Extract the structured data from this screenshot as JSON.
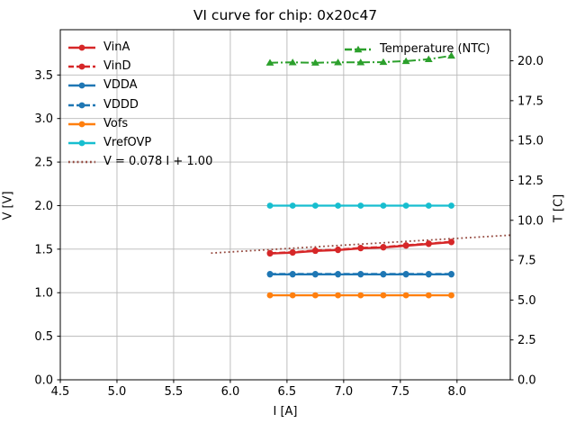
{
  "title": "VI curve for chip: 0x20c47",
  "chart_data": {
    "type": "line",
    "title": "VI curve for chip: 0x20c47",
    "xlabel": "I [A]",
    "ylabel_left": "V [V]",
    "ylabel_right": "T [C]",
    "xlim": [
      4.5,
      8.47
    ],
    "ylim_left": [
      0.0,
      4.02
    ],
    "ylim_right": [
      0.0,
      21.95
    ],
    "grid": true,
    "x_tick_labels": [
      "4.5",
      "5.0",
      "5.5",
      "6.0",
      "6.5",
      "7.0",
      "7.5",
      "8.0"
    ],
    "y_tick_labels_left": [
      "0.0",
      "0.5",
      "1.0",
      "1.5",
      "2.0",
      "2.5",
      "3.0",
      "3.5"
    ],
    "y_tick_labels_right": [
      "0.0",
      "2.5",
      "5.0",
      "7.5",
      "10.0",
      "12.5",
      "15.0",
      "17.5",
      "20.0"
    ],
    "x": [
      6.35,
      6.55,
      6.75,
      6.95,
      7.15,
      7.35,
      7.55,
      7.75,
      7.95
    ],
    "series": [
      {
        "name": "VinA",
        "axis": "left",
        "color": "#d62728",
        "linestyle": "solid",
        "marker": "circle",
        "linewidth": 2.4,
        "values": [
          1.45,
          1.46,
          1.48,
          1.49,
          1.51,
          1.52,
          1.54,
          1.56,
          1.58
        ]
      },
      {
        "name": "VinD",
        "axis": "left",
        "color": "#d62728",
        "linestyle": "dashed",
        "marker": "circle",
        "linewidth": 2.2,
        "values": [
          1.455,
          1.465,
          1.485,
          1.495,
          1.515,
          1.525,
          1.545,
          1.565,
          1.585
        ]
      },
      {
        "name": "VDDA",
        "axis": "left",
        "color": "#1f77b4",
        "linestyle": "solid",
        "marker": "circle",
        "linewidth": 2.2,
        "values": [
          1.21,
          1.21,
          1.21,
          1.21,
          1.21,
          1.21,
          1.21,
          1.21,
          1.21
        ]
      },
      {
        "name": "VDDD",
        "axis": "left",
        "color": "#1f77b4",
        "linestyle": "dashed",
        "marker": "circle",
        "linewidth": 2.2,
        "values": [
          1.215,
          1.215,
          1.215,
          1.215,
          1.215,
          1.215,
          1.215,
          1.215,
          1.215
        ]
      },
      {
        "name": "Vofs",
        "axis": "left",
        "color": "#ff7f0e",
        "linestyle": "solid",
        "marker": "circle",
        "linewidth": 2.2,
        "values": [
          0.97,
          0.97,
          0.97,
          0.97,
          0.97,
          0.97,
          0.97,
          0.97,
          0.97
        ]
      },
      {
        "name": "VrefOVP",
        "axis": "left",
        "color": "#17becf",
        "linestyle": "solid",
        "marker": "circle",
        "linewidth": 2.2,
        "values": [
          2.0,
          2.0,
          2.0,
          2.0,
          2.0,
          2.0,
          2.0,
          2.0,
          2.0
        ]
      },
      {
        "name": "Temperature (NTC)",
        "axis": "right",
        "color": "#2ca02c",
        "linestyle": "dashdot",
        "marker": "triangle",
        "linewidth": 2.0,
        "values": [
          19.88,
          19.9,
          19.88,
          19.9,
          19.9,
          19.92,
          19.98,
          20.1,
          20.32
        ]
      }
    ],
    "fit_line": {
      "label": "V = 0.078 I + 1.00",
      "slope": 0.078,
      "intercept": 1.0,
      "x_start": 5.83,
      "x_end": 8.47,
      "color": "#95493f",
      "linestyle": "dotted",
      "linewidth": 1.8
    },
    "legend_main": {
      "entries": [
        {
          "label": "VinA",
          "color": "#d62728",
          "linestyle": "solid",
          "marker": "circle"
        },
        {
          "label": "VinD",
          "color": "#d62728",
          "linestyle": "dashed",
          "marker": "circle"
        },
        {
          "label": "VDDA",
          "color": "#1f77b4",
          "linestyle": "solid",
          "marker": "circle"
        },
        {
          "label": "VDDD",
          "color": "#1f77b4",
          "linestyle": "dashed",
          "marker": "circle"
        },
        {
          "label": "Vofs",
          "color": "#ff7f0e",
          "linestyle": "solid",
          "marker": "circle"
        },
        {
          "label": "VrefOVP",
          "color": "#17becf",
          "linestyle": "solid",
          "marker": "circle"
        },
        {
          "label": "V = 0.078 I + 1.00",
          "color": "#95493f",
          "linestyle": "dotted",
          "marker": "none"
        }
      ]
    },
    "legend_right": {
      "entries": [
        {
          "label": "Temperature (NTC)",
          "color": "#2ca02c",
          "linestyle": "dashdot",
          "marker": "triangle"
        }
      ]
    },
    "colors": {
      "grid": "#b8b8b8",
      "axis": "#000000",
      "background": "#ffffff"
    }
  }
}
